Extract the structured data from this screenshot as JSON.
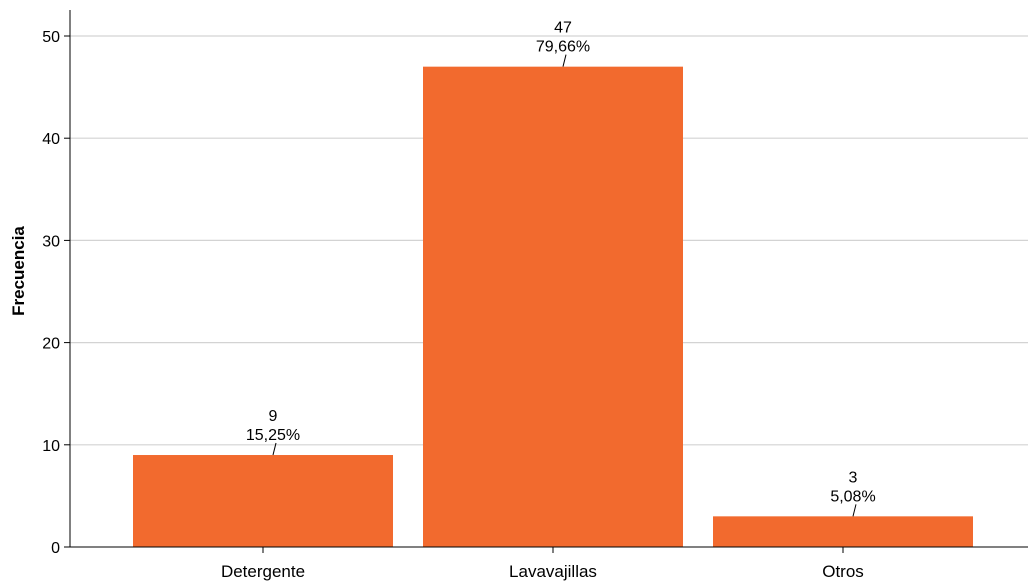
{
  "chart_data": {
    "type": "bar",
    "categories": [
      "Detergente",
      "Lavavajillas",
      "Otros"
    ],
    "values": [
      9,
      47,
      3
    ],
    "percent_labels": [
      "15,25%",
      "79,66%",
      "5,08%"
    ],
    "count_labels": [
      "9",
      "47",
      "3"
    ],
    "xlabel": "",
    "ylabel": "Frecuencia",
    "ylim": [
      0,
      52
    ],
    "yticks": [
      0,
      10,
      20,
      30,
      40,
      50
    ],
    "ytick_labels": [
      "0",
      "10",
      "20",
      "30",
      "40",
      "50"
    ],
    "grid": true,
    "legend": false,
    "colors": {
      "bar": "#f26a2e",
      "grid": "#d3d3d3",
      "axis": "#000000"
    }
  }
}
